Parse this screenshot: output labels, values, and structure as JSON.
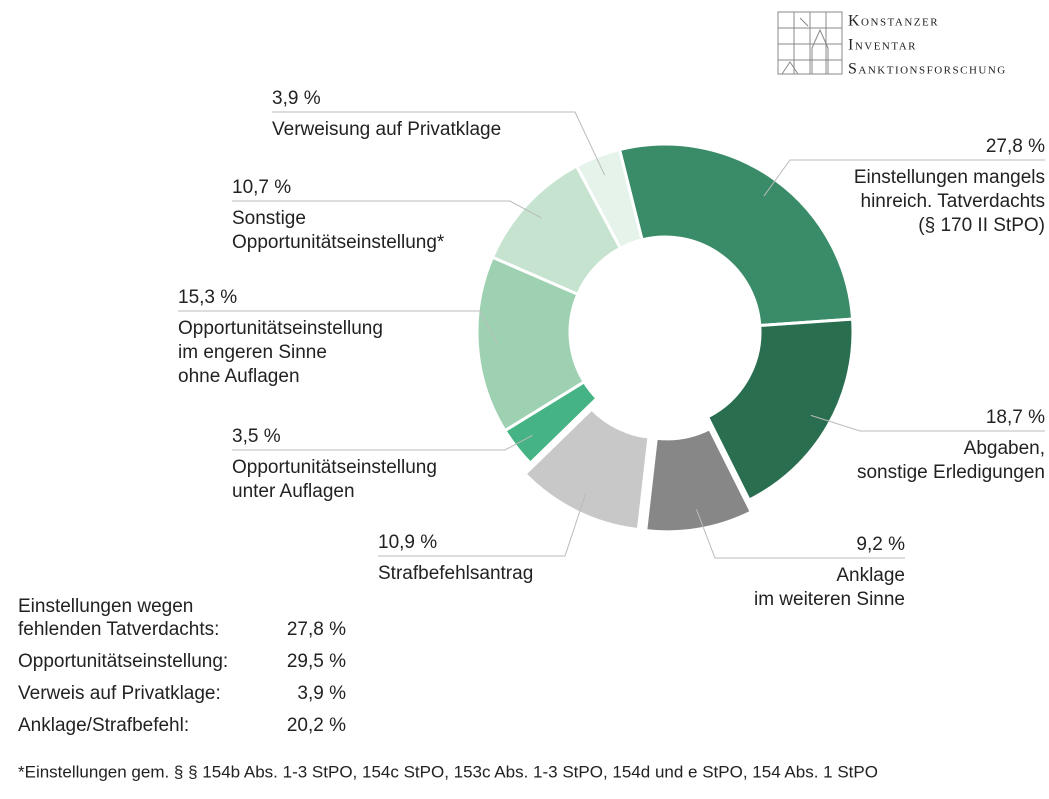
{
  "logo": [
    "Konstanzer",
    "Inventar",
    "Sanktionsforschung"
  ],
  "chart_data": {
    "type": "donut",
    "labels": [
      [
        "Einstellungen mangels",
        "hinreich. Tatverdachts",
        "(§ 170 II StPO)"
      ],
      [
        "Abgaben,",
        "sonstige Erledigungen"
      ],
      [
        "Anklage",
        "im weiteren Sinne"
      ],
      [
        "Strafbefehlsantrag"
      ],
      [
        "Opportunitätseinstellung",
        "unter Auflagen"
      ],
      [
        "Opportunitätseinstellung",
        "im engeren Sinne",
        "ohne Auflagen"
      ],
      [
        "Sonstige",
        "Opportunitätseinstellung*"
      ],
      [
        "Verweisung auf Privatklage"
      ]
    ],
    "values": [
      27.8,
      18.7,
      9.2,
      10.9,
      3.5,
      15.3,
      10.7,
      3.9
    ],
    "value_labels": [
      "27,8 %",
      "18,7 %",
      "9,2 %",
      "10,9 %",
      "3,5 %",
      "15,3 %",
      "10,7 %",
      "3,9 %"
    ],
    "colors": [
      "#3a8c68",
      "#2a6e50",
      "#878787",
      "#c8c8c8",
      "#45b383",
      "#9dd1b2",
      "#c5e3cf",
      "#e5f3ea"
    ],
    "exploded": [
      false,
      false,
      true,
      true,
      false,
      false,
      false,
      false
    ]
  },
  "summary": {
    "rows": [
      {
        "label": [
          "Einstellungen wegen",
          "fehlenden Tatverdachts:"
        ],
        "value": "27,8 %"
      },
      {
        "label": [
          "Opportunitätseinstellung:"
        ],
        "value": "29,5 %"
      },
      {
        "label": [
          "Verweis auf Privatklage:"
        ],
        "value": "3,9 %"
      },
      {
        "label": [
          "Anklage/Strafbefehl:"
        ],
        "value": "20,2 %"
      }
    ]
  },
  "footnote": "*Einstellungen gem. § § 154b Abs. 1-3 StPO, 154c StPO, 153c Abs. 1-3 StPO, 154d und e StPO, 154 Abs. 1 StPO"
}
